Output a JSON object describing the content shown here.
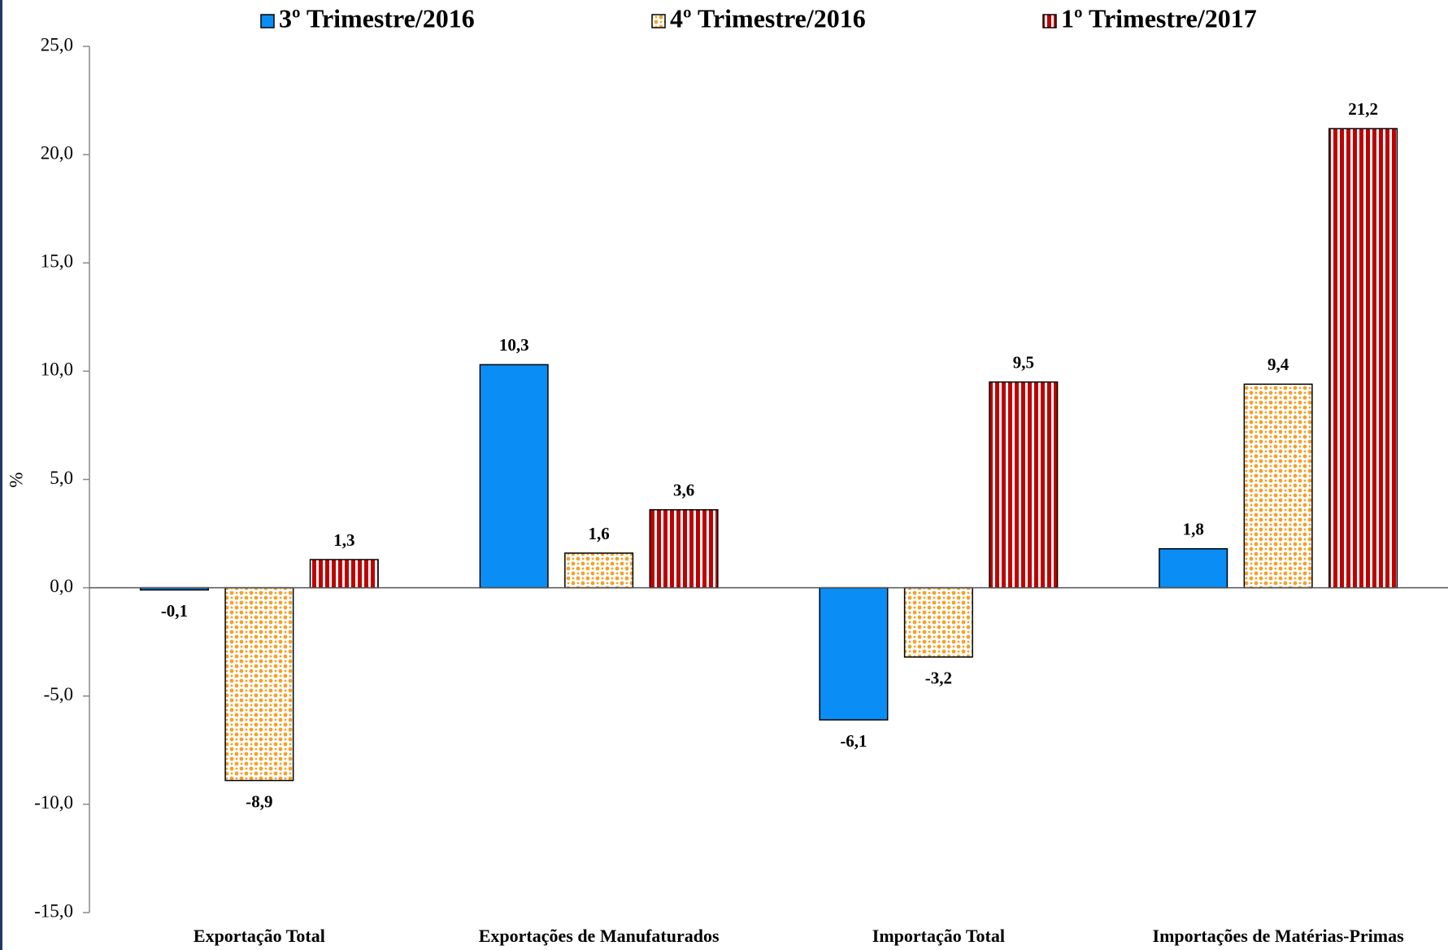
{
  "chart_data": {
    "type": "bar",
    "y_label": "%",
    "categories": [
      "Exportação Total",
      "Exportações de Manufaturados",
      "Importação Total",
      "Importações de Matérias-Primas"
    ],
    "series": [
      {
        "name": "3º Trimestre/2016",
        "color": "#0a8ef5",
        "pattern": "solid",
        "values": [
          -0.1,
          10.3,
          -6.1,
          1.8
        ],
        "value_labels": [
          "-0,1",
          "10,3",
          "-6,1",
          "1,8"
        ]
      },
      {
        "name": "4º Trimestre/2016",
        "color": "#f5a02a",
        "pattern": "dots",
        "values": [
          -8.9,
          1.6,
          -3.2,
          9.4
        ],
        "value_labels": [
          "-8,9",
          "1,6",
          "-3,2",
          "9,4"
        ]
      },
      {
        "name": "1º Trimestre/2017",
        "color": "#c00000",
        "pattern": "stripes",
        "values": [
          1.3,
          3.6,
          9.5,
          21.2
        ],
        "value_labels": [
          "1,3",
          "3,6",
          "9,5",
          "21,2"
        ]
      }
    ],
    "ylim": [
      -15,
      25
    ],
    "yticks": [
      {
        "value": -15,
        "label": "-15,0"
      },
      {
        "value": -10,
        "label": "-10,0"
      },
      {
        "value": -5,
        "label": "-5,0"
      },
      {
        "value": 0,
        "label": "0,0"
      },
      {
        "value": 5,
        "label": "5,0"
      },
      {
        "value": 10,
        "label": "10,0"
      },
      {
        "value": 15,
        "label": "15,0"
      },
      {
        "value": 20,
        "label": "20,0"
      },
      {
        "value": 25,
        "label": "25,0"
      }
    ],
    "grid": false,
    "legend": "top"
  }
}
